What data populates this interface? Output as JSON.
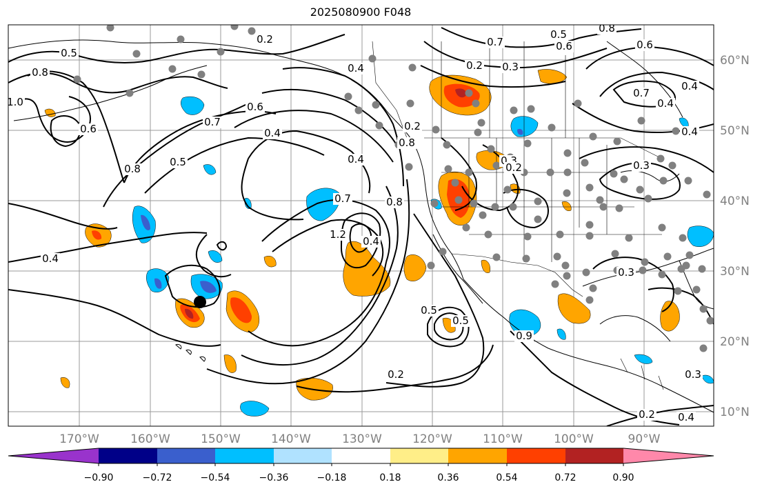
{
  "title": "2025080900 F048",
  "colors": {
    "neg_090": "#9933cc",
    "neg_072": "#000088",
    "neg_054": "#3a5fcd",
    "neg_036": "#00bfff",
    "neg_018": "#b0e2ff",
    "neutral": "#ffffff",
    "pos_018": "#ffee88",
    "pos_036": "#ffa500",
    "pos_054": "#ff4000",
    "pos_072": "#b22222",
    "pos_090": "#ff88aa",
    "grid": "#999999",
    "coast": "#000000",
    "station": "#808080"
  },
  "lon_labels": [
    "170°W",
    "160°W",
    "150°W",
    "140°W",
    "130°W",
    "120°W",
    "110°W",
    "100°W",
    "90°W"
  ],
  "lat_labels": [
    "60°N",
    "50°N",
    "40°N",
    "30°N",
    "20°N",
    "10°N"
  ],
  "colorbar": {
    "labels": [
      "−0.90",
      "−0.72",
      "−0.54",
      "−0.36",
      "−0.18",
      "0.18",
      "0.36",
      "0.54",
      "0.72",
      "0.90"
    ]
  },
  "contour_labels": [
    "0.5",
    "0.8",
    "1.0",
    "0.6",
    "0.8",
    "0.5",
    "0.7",
    "0.6",
    "0.4",
    "0.2",
    "0.4",
    "0.4",
    "0.4",
    "0.7",
    "1.2",
    "0.4",
    "0.8",
    "0.8",
    "0.7",
    "0.5",
    "0.6",
    "0.2",
    "0.3",
    "0.8",
    "0.7",
    "0.4",
    "0.4",
    "0.4",
    "0.3",
    "0.2",
    "0.3",
    "0.5",
    "0.5",
    "0.9",
    "0.2",
    "0.3",
    "0.2",
    "0.2",
    "0.4",
    "0.3",
    "0.6"
  ]
}
